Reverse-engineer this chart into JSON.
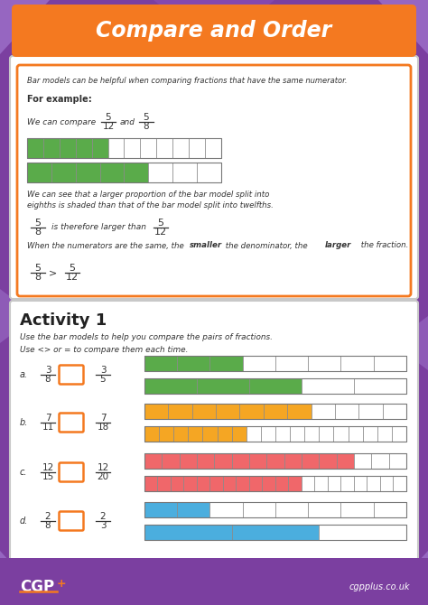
{
  "title": "Compare and Order",
  "bg_color": "#7b3fa0",
  "orange_color": "#f47920",
  "green_color": "#5aab4a",
  "pairs": [
    {
      "label": "a.",
      "f1n": "3",
      "f1d": "8",
      "f2n": "3",
      "f2d": "5",
      "color": "#5aab4a",
      "filled1": 3,
      "total1": 8,
      "filled2": 3,
      "total2": 5
    },
    {
      "label": "b.",
      "f1n": "7",
      "f1d": "11",
      "f2n": "7",
      "f2d": "18",
      "color": "#f5a623",
      "filled1": 7,
      "total1": 11,
      "filled2": 7,
      "total2": 18
    },
    {
      "label": "c.",
      "f1n": "12",
      "f1d": "15",
      "f2n": "12",
      "f2d": "20",
      "color": "#f0676a",
      "filled1": 12,
      "total1": 15,
      "filled2": 12,
      "total2": 20
    },
    {
      "label": "d.",
      "f1n": "2",
      "f1d": "8",
      "f2n": "2",
      "f2d": "3",
      "color": "#4baede",
      "filled1": 2,
      "total1": 8,
      "filled2": 2,
      "total2": 3
    }
  ],
  "light_purple_tri": "#9b6ec8",
  "mid_purple_tri": "#8e50b8"
}
